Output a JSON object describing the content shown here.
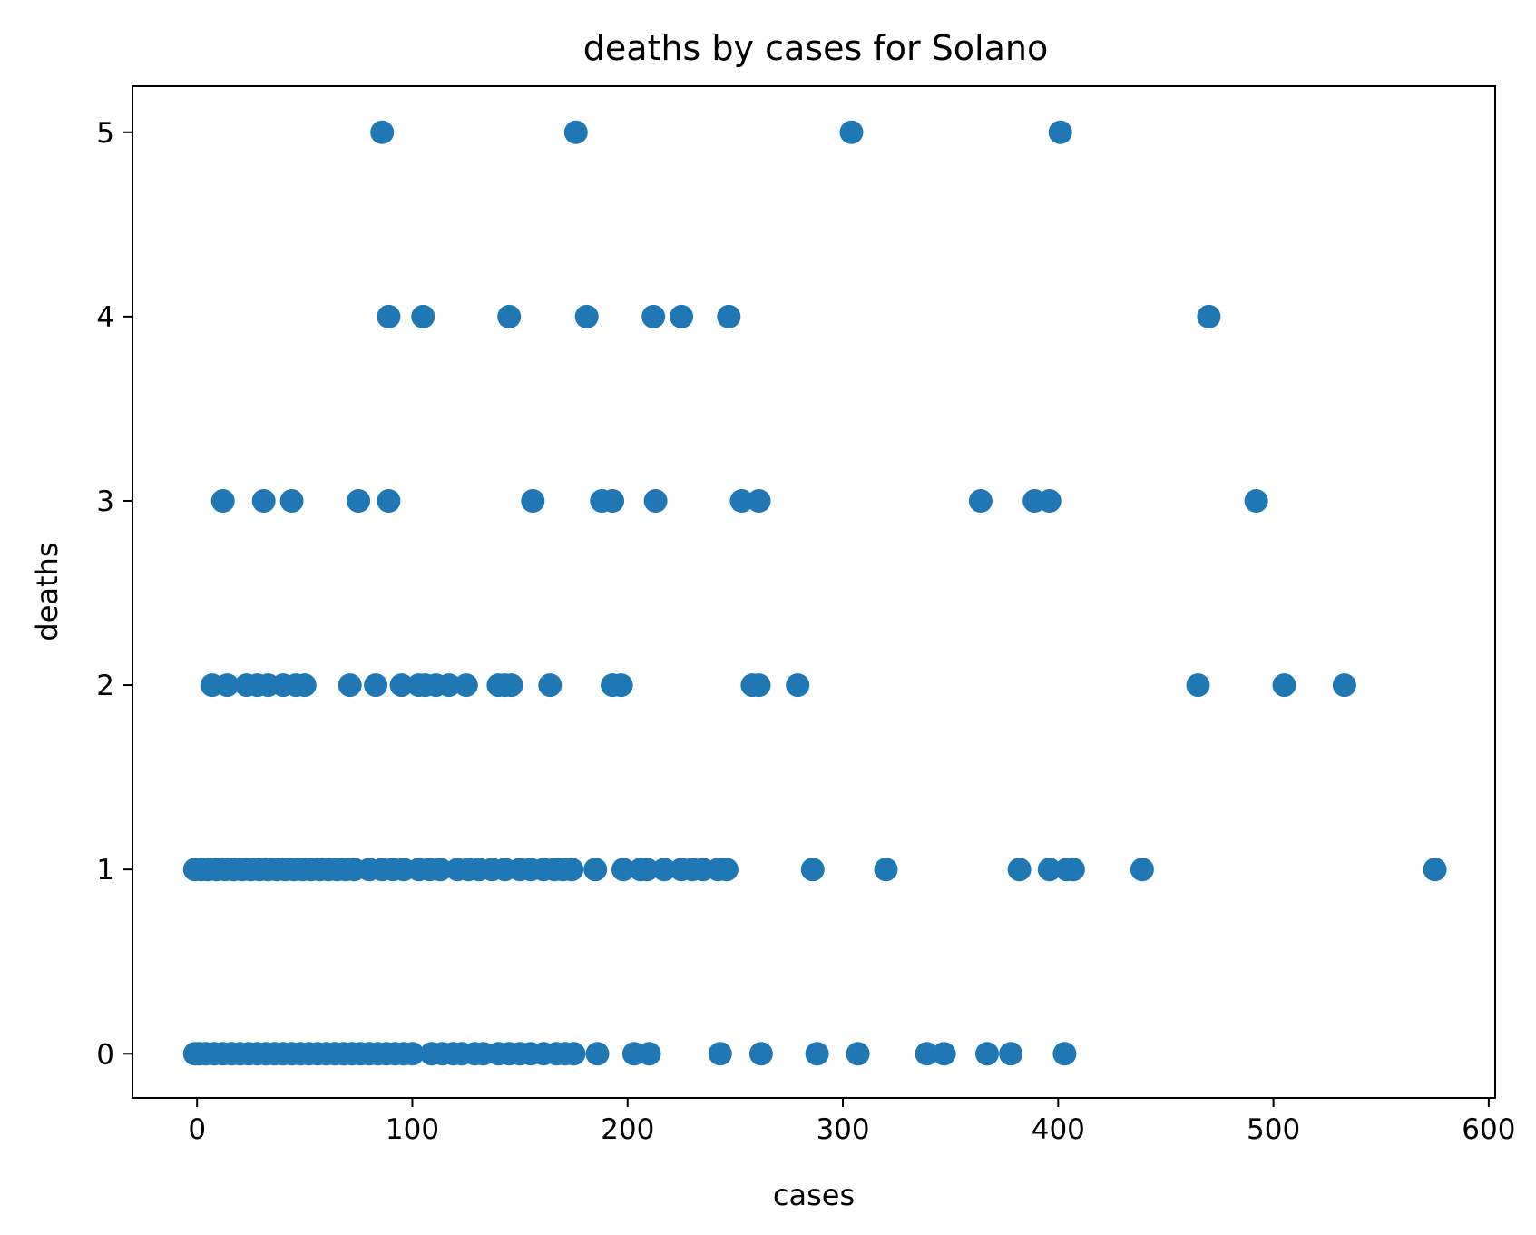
{
  "chart_data": {
    "type": "scatter",
    "title": "deaths by cases for Solano",
    "xlabel": "cases",
    "ylabel": "deaths",
    "xlim": [
      -30,
      603
    ],
    "ylim": [
      -0.24,
      5.25
    ],
    "xticks": [
      0,
      100,
      200,
      300,
      400,
      500,
      600
    ],
    "yticks": [
      0,
      1,
      2,
      3,
      4,
      5
    ],
    "grid": false,
    "color": "#1f77b4",
    "series": [
      {
        "values": [
          [
            86,
            5
          ],
          [
            176,
            5
          ],
          [
            304,
            5
          ],
          [
            401,
            5
          ],
          [
            89,
            4
          ],
          [
            105,
            4
          ],
          [
            145,
            4
          ],
          [
            181,
            4
          ],
          [
            212,
            4
          ],
          [
            225,
            4
          ],
          [
            247,
            4
          ],
          [
            470,
            4
          ],
          [
            12,
            3
          ],
          [
            31,
            3
          ],
          [
            44,
            3
          ],
          [
            75,
            3
          ],
          [
            89,
            3
          ],
          [
            156,
            3
          ],
          [
            188,
            3
          ],
          [
            193,
            3
          ],
          [
            213,
            3
          ],
          [
            253,
            3
          ],
          [
            261,
            3
          ],
          [
            364,
            3
          ],
          [
            389,
            3
          ],
          [
            396,
            3
          ],
          [
            492,
            3
          ],
          [
            7,
            2
          ],
          [
            14,
            2
          ],
          [
            23,
            2
          ],
          [
            28,
            2
          ],
          [
            33,
            2
          ],
          [
            40,
            2
          ],
          [
            46,
            2
          ],
          [
            50,
            2
          ],
          [
            71,
            2
          ],
          [
            83,
            2
          ],
          [
            95,
            2
          ],
          [
            103,
            2
          ],
          [
            106,
            2
          ],
          [
            111,
            2
          ],
          [
            117,
            2
          ],
          [
            125,
            2
          ],
          [
            140,
            2
          ],
          [
            143,
            2
          ],
          [
            146,
            2
          ],
          [
            164,
            2
          ],
          [
            193,
            2
          ],
          [
            197,
            2
          ],
          [
            258,
            2
          ],
          [
            261,
            2
          ],
          [
            279,
            2
          ],
          [
            465,
            2
          ],
          [
            505,
            2
          ],
          [
            533,
            2
          ],
          [
            -1,
            1
          ],
          [
            2,
            1
          ],
          [
            5,
            1
          ],
          [
            9,
            1
          ],
          [
            13,
            1
          ],
          [
            17,
            1
          ],
          [
            21,
            1
          ],
          [
            25,
            1
          ],
          [
            29,
            1
          ],
          [
            33,
            1
          ],
          [
            37,
            1
          ],
          [
            41,
            1
          ],
          [
            45,
            1
          ],
          [
            49,
            1
          ],
          [
            53,
            1
          ],
          [
            57,
            1
          ],
          [
            61,
            1
          ],
          [
            65,
            1
          ],
          [
            69,
            1
          ],
          [
            73,
            1
          ],
          [
            80,
            1
          ],
          [
            86,
            1
          ],
          [
            91,
            1
          ],
          [
            96,
            1
          ],
          [
            103,
            1
          ],
          [
            108,
            1
          ],
          [
            113,
            1
          ],
          [
            121,
            1
          ],
          [
            126,
            1
          ],
          [
            131,
            1
          ],
          [
            137,
            1
          ],
          [
            143,
            1
          ],
          [
            150,
            1
          ],
          [
            155,
            1
          ],
          [
            161,
            1
          ],
          [
            166,
            1
          ],
          [
            170,
            1
          ],
          [
            174,
            1
          ],
          [
            185,
            1
          ],
          [
            198,
            1
          ],
          [
            206,
            1
          ],
          [
            209,
            1
          ],
          [
            217,
            1
          ],
          [
            225,
            1
          ],
          [
            230,
            1
          ],
          [
            235,
            1
          ],
          [
            242,
            1
          ],
          [
            246,
            1
          ],
          [
            286,
            1
          ],
          [
            320,
            1
          ],
          [
            382,
            1
          ],
          [
            396,
            1
          ],
          [
            404,
            1
          ],
          [
            407,
            1
          ],
          [
            439,
            1
          ],
          [
            575,
            1
          ],
          [
            -1,
            0
          ],
          [
            1,
            0
          ],
          [
            4,
            0
          ],
          [
            8,
            0
          ],
          [
            12,
            0
          ],
          [
            16,
            0
          ],
          [
            20,
            0
          ],
          [
            24,
            0
          ],
          [
            28,
            0
          ],
          [
            32,
            0
          ],
          [
            36,
            0
          ],
          [
            40,
            0
          ],
          [
            44,
            0
          ],
          [
            48,
            0
          ],
          [
            52,
            0
          ],
          [
            56,
            0
          ],
          [
            60,
            0
          ],
          [
            64,
            0
          ],
          [
            68,
            0
          ],
          [
            72,
            0
          ],
          [
            76,
            0
          ],
          [
            80,
            0
          ],
          [
            84,
            0
          ],
          [
            88,
            0
          ],
          [
            92,
            0
          ],
          [
            96,
            0
          ],
          [
            100,
            0
          ],
          [
            109,
            0
          ],
          [
            114,
            0
          ],
          [
            119,
            0
          ],
          [
            123,
            0
          ],
          [
            129,
            0
          ],
          [
            133,
            0
          ],
          [
            140,
            0
          ],
          [
            145,
            0
          ],
          [
            150,
            0
          ],
          [
            155,
            0
          ],
          [
            161,
            0
          ],
          [
            167,
            0
          ],
          [
            171,
            0
          ],
          [
            175,
            0
          ],
          [
            186,
            0
          ],
          [
            203,
            0
          ],
          [
            210,
            0
          ],
          [
            243,
            0
          ],
          [
            262,
            0
          ],
          [
            288,
            0
          ],
          [
            307,
            0
          ],
          [
            339,
            0
          ],
          [
            347,
            0
          ],
          [
            367,
            0
          ],
          [
            378,
            0
          ],
          [
            403,
            0
          ]
        ]
      }
    ]
  }
}
